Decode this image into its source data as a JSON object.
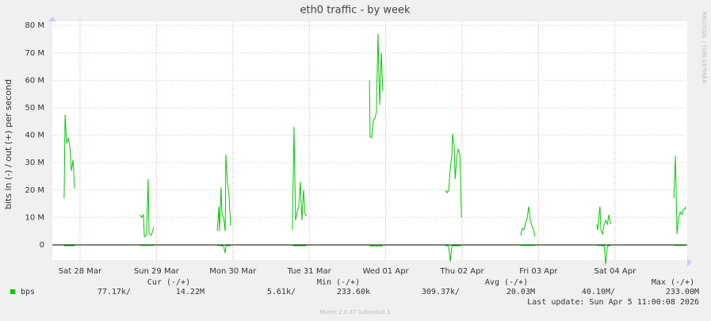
{
  "chart_data": {
    "type": "line",
    "title": "eth0 traffic - by week",
    "ylabel": "bits in (-) / out (+) per second",
    "watermark": "RRDTOOL / TOBI OETIKER",
    "footer": "Munin 2.0.37-1ubuntu0.1",
    "last_update": "Last update: Sun Apr  5 11:00:08 2026",
    "grid": true,
    "xlim": [
      3.3,
      202.7
    ],
    "xticks": [
      {
        "value": 12,
        "label": "Sat 28 Mar"
      },
      {
        "value": 36,
        "label": "Sun 29 Mar"
      },
      {
        "value": 60,
        "label": "Mon 30 Mar"
      },
      {
        "value": 84,
        "label": "Tue 31 Mar"
      },
      {
        "value": 108,
        "label": "Wed 01 Apr"
      },
      {
        "value": 132,
        "label": "Thu 02 Apr"
      },
      {
        "value": 156,
        "label": "Fri 03 Apr"
      },
      {
        "value": 180,
        "label": "Sat 04 Apr"
      }
    ],
    "ylim": [
      -5500000,
      81500000
    ],
    "yticks": [
      {
        "value": 0,
        "label": "0"
      },
      {
        "value": 10000000,
        "label": "10 M"
      },
      {
        "value": 20000000,
        "label": "20 M"
      },
      {
        "value": 30000000,
        "label": "30 M"
      },
      {
        "value": 40000000,
        "label": "40 M"
      },
      {
        "value": 50000000,
        "label": "50 M"
      },
      {
        "value": 60000000,
        "label": "60 M"
      },
      {
        "value": 70000000,
        "label": "70 M"
      },
      {
        "value": 80000000,
        "label": "80 M"
      }
    ],
    "stat_headers": [
      "Cur (-/+)",
      "Min (-/+)",
      "Avg (-/+)",
      "Max (-/+)"
    ],
    "x": [
      7.0,
      7.3,
      7.8,
      8.3,
      8.8,
      9.3,
      9.8,
      10.3,
      20.0,
      30.9,
      31.4,
      31.9,
      32.2,
      32.9,
      33.4,
      33.7,
      34.4,
      35.2,
      45.0,
      55.1,
      55.6,
      55.8,
      56.3,
      56.6,
      57.1,
      57.6,
      57.8,
      58.3,
      58.8,
      59.3,
      70.0,
      78.7,
      79.2,
      79.7,
      80.2,
      80.7,
      81.2,
      81.7,
      82.2,
      82.7,
      83.2,
      95.0,
      102.9,
      103.1,
      103.6,
      104.1,
      104.6,
      105.1,
      105.6,
      106.1,
      106.6,
      107.1,
      118.0,
      126.8,
      127.3,
      127.8,
      128.3,
      128.8,
      129.0,
      129.5,
      129.8,
      130.3,
      130.8,
      131.3,
      131.8,
      142.0,
      150.4,
      150.9,
      151.4,
      151.9,
      152.4,
      152.9,
      153.4,
      153.9,
      154.4,
      154.9,
      165.0,
      174.3,
      174.6,
      175.3,
      175.6,
      176.1,
      176.6,
      177.1,
      177.6,
      178.1,
      178.6,
      190.0,
      198.5,
      199.0,
      199.5,
      200.0,
      200.5,
      201.0,
      201.5,
      202.0,
      202.2
    ],
    "series": [
      {
        "name": "bps",
        "color": "#00cc00",
        "values": [
          17000000,
          47500000,
          37000000,
          39000000,
          36000000,
          27000000,
          31000000,
          20500000,
          null,
          11000000,
          10000000,
          11000000,
          3000000,
          3500000,
          24000000,
          4000000,
          3500000,
          6500000,
          null,
          5000000,
          14000000,
          5000000,
          21000000,
          11000000,
          10000000,
          5000000,
          33000000,
          23000000,
          18000000,
          7000000,
          null,
          5500000,
          43000000,
          9000000,
          12000000,
          14000000,
          23000000,
          9000000,
          20000000,
          11000000,
          10500000,
          null,
          60000000,
          39500000,
          39000000,
          45500000,
          46000000,
          48500000,
          77000000,
          51000000,
          70000000,
          56000000,
          null,
          20000000,
          19000000,
          20000000,
          28000000,
          33000000,
          40500000,
          36000000,
          24000000,
          32000000,
          35000000,
          33000000,
          10000000,
          null,
          3500000,
          6000000,
          5500000,
          8000000,
          9500000,
          14000000,
          9000000,
          7000000,
          5500000,
          3000000,
          null,
          7500000,
          5500000,
          14000000,
          5500000,
          4000000,
          7500000,
          9000000,
          7500000,
          11000000,
          7500000,
          null,
          17000000,
          32500000,
          4000000,
          10000000,
          12000000,
          11000000,
          13000000,
          13000000,
          14000000
        ],
        "in_values": [
          -300000,
          -300000,
          -300000,
          -300000,
          -300000,
          -300000,
          -300000,
          -300000,
          null,
          -200000,
          -200000,
          -200000,
          -200000,
          -200000,
          -200000,
          -200000,
          -200000,
          -200000,
          null,
          -200000,
          -200000,
          -200000,
          -300000,
          -300000,
          -500000,
          -3000000,
          -500000,
          -300000,
          -300000,
          -200000,
          null,
          -200000,
          -300000,
          -300000,
          -300000,
          -300000,
          -300000,
          -300000,
          -300000,
          -300000,
          -200000,
          null,
          -300000,
          -300000,
          -500000,
          -300000,
          -300000,
          -500000,
          -300000,
          -500000,
          -300000,
          -300000,
          null,
          -300000,
          -300000,
          -500000,
          -6000000,
          -500000,
          -300000,
          -300000,
          -300000,
          -300000,
          -300000,
          -300000,
          -200000,
          null,
          -200000,
          -200000,
          -200000,
          -200000,
          -200000,
          -200000,
          -200000,
          -200000,
          -200000,
          -200000,
          null,
          -200000,
          -200000,
          -200000,
          -200000,
          -300000,
          -300000,
          -7000000,
          -500000,
          -300000,
          -200000,
          null,
          -200000,
          -200000,
          -200000,
          -200000,
          -200000,
          -200000,
          -200000,
          -200000,
          -200000
        ],
        "stats": [
          "77.17k/",
          "14.22M",
          "5.61k/",
          "233.60k",
          "309.37k/",
          "20.03M",
          "40.10M/",
          "233.00M"
        ]
      }
    ]
  }
}
